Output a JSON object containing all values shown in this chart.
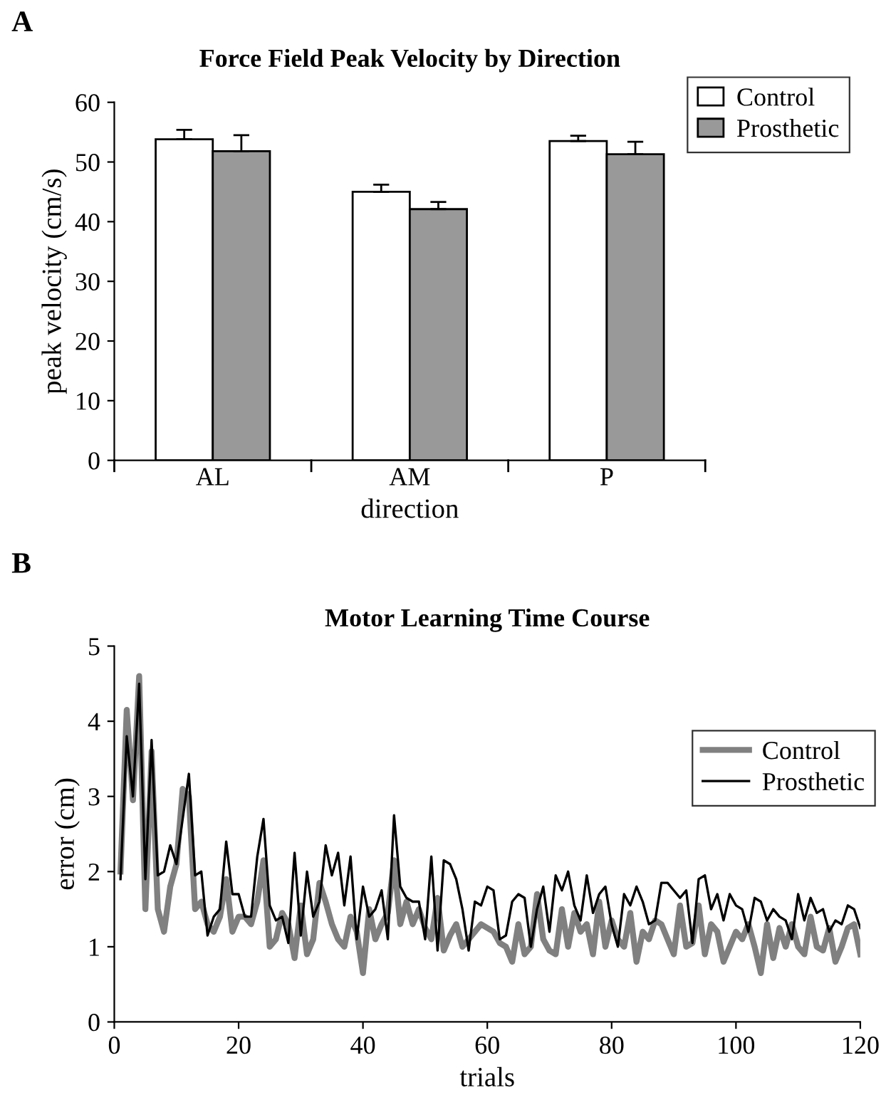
{
  "chart_data": [
    {
      "type": "bar",
      "title": "Force Field Peak Velocity by Direction",
      "xlabel": "direction",
      "ylabel": "peak velocity (cm/s)",
      "categories": [
        "AL",
        "AM",
        "P"
      ],
      "ylim": [
        0,
        60
      ],
      "yticks": [
        0,
        10,
        20,
        30,
        40,
        50,
        60
      ],
      "grid": false,
      "legend": "top right",
      "annotations": [
        "A"
      ],
      "series": [
        {
          "name": "Control",
          "color": "#ffffff",
          "values": [
            53.8,
            45.0,
            53.5
          ],
          "errors": [
            [
              53.8,
              55.4
            ],
            [
              45.0,
              46.2
            ],
            [
              53.5,
              54.4
            ]
          ]
        },
        {
          "name": "Prosthetic",
          "color": "#999999",
          "values": [
            51.8,
            42.1,
            51.3
          ],
          "errors": [
            [
              51.8,
              54.5
            ],
            [
              42.1,
              43.3
            ],
            [
              51.3,
              53.4
            ]
          ]
        }
      ]
    },
    {
      "type": "line",
      "title": "Motor Learning Time Course",
      "xlabel": "trials",
      "ylabel": "error (cm)",
      "xlim": [
        0,
        120
      ],
      "xticks": [
        0,
        20,
        40,
        60,
        80,
        100,
        120
      ],
      "ylim": [
        0,
        5
      ],
      "yticks": [
        0,
        1,
        2,
        3,
        4,
        5
      ],
      "grid": false,
      "legend": "right",
      "annotations": [
        "B"
      ],
      "series": [
        {
          "name": "Control",
          "color": "#808080",
          "x": [
            1,
            2,
            3,
            4,
            5,
            6,
            7,
            8,
            9,
            10,
            11,
            12,
            13,
            14,
            15,
            16,
            17,
            18,
            19,
            20,
            21,
            22,
            23,
            24,
            25,
            26,
            27,
            28,
            29,
            30,
            31,
            32,
            33,
            34,
            35,
            36,
            37,
            38,
            39,
            40,
            41,
            42,
            43,
            44,
            45,
            46,
            47,
            48,
            49,
            50,
            51,
            52,
            53,
            54,
            55,
            56,
            57,
            58,
            59,
            60,
            61,
            62,
            63,
            64,
            65,
            66,
            67,
            68,
            69,
            70,
            71,
            72,
            73,
            74,
            75,
            76,
            77,
            78,
            79,
            80,
            81,
            82,
            83,
            84,
            85,
            86,
            87,
            88,
            89,
            90,
            91,
            92,
            93,
            94,
            95,
            96,
            97,
            98,
            99,
            100,
            101,
            102,
            103,
            104,
            105,
            106,
            107,
            108,
            109,
            110,
            111,
            112,
            113,
            114,
            115,
            116,
            117,
            118,
            119,
            120
          ],
          "values": [
            2.0,
            4.15,
            2.95,
            4.6,
            1.5,
            3.6,
            1.5,
            1.2,
            1.8,
            2.1,
            3.1,
            3.0,
            1.5,
            1.6,
            1.3,
            1.2,
            1.4,
            1.9,
            1.2,
            1.4,
            1.4,
            1.3,
            1.6,
            2.15,
            1.0,
            1.1,
            1.45,
            1.3,
            0.85,
            1.55,
            0.9,
            1.1,
            1.85,
            1.6,
            1.3,
            1.1,
            1.0,
            1.4,
            1.2,
            0.65,
            1.5,
            1.1,
            1.3,
            1.45,
            2.15,
            1.3,
            1.6,
            1.3,
            1.5,
            1.25,
            1.1,
            1.65,
            0.95,
            1.15,
            1.3,
            1.0,
            1.1,
            1.2,
            1.3,
            1.25,
            1.2,
            1.05,
            1.0,
            0.8,
            1.3,
            0.9,
            1.0,
            1.7,
            1.1,
            0.95,
            0.9,
            1.5,
            1.0,
            1.45,
            1.2,
            1.3,
            0.9,
            1.6,
            1.0,
            1.35,
            1.1,
            1.0,
            1.45,
            0.8,
            1.2,
            1.1,
            1.35,
            1.3,
            1.1,
            0.9,
            1.55,
            1.0,
            1.05,
            1.55,
            0.9,
            1.3,
            1.2,
            0.8,
            1.0,
            1.2,
            1.1,
            1.3,
            1.0,
            0.65,
            1.3,
            0.85,
            1.25,
            1.0,
            1.3,
            1.0,
            0.9,
            1.4,
            1.0,
            0.95,
            1.25,
            0.8,
            1.0,
            1.25,
            1.3,
            0.9
          ]
        },
        {
          "name": "Prosthetic",
          "color": "#000000",
          "x": [
            1,
            2,
            3,
            4,
            5,
            6,
            7,
            8,
            9,
            10,
            11,
            12,
            13,
            14,
            15,
            16,
            17,
            18,
            19,
            20,
            21,
            22,
            23,
            24,
            25,
            26,
            27,
            28,
            29,
            30,
            31,
            32,
            33,
            34,
            35,
            36,
            37,
            38,
            39,
            40,
            41,
            42,
            43,
            44,
            45,
            46,
            47,
            48,
            49,
            50,
            51,
            52,
            53,
            54,
            55,
            56,
            57,
            58,
            59,
            60,
            61,
            62,
            63,
            64,
            65,
            66,
            67,
            68,
            69,
            70,
            71,
            72,
            73,
            74,
            75,
            76,
            77,
            78,
            79,
            80,
            81,
            82,
            83,
            84,
            85,
            86,
            87,
            88,
            89,
            90,
            91,
            92,
            93,
            94,
            95,
            96,
            97,
            98,
            99,
            100,
            101,
            102,
            103,
            104,
            105,
            106,
            107,
            108,
            109,
            110,
            111,
            112,
            113,
            114,
            115,
            116,
            117,
            118,
            119,
            120
          ],
          "values": [
            1.9,
            3.8,
            3.0,
            4.5,
            1.9,
            3.75,
            1.95,
            2.0,
            2.35,
            2.1,
            2.7,
            3.3,
            1.95,
            2.0,
            1.15,
            1.4,
            1.5,
            2.4,
            1.7,
            1.7,
            1.4,
            1.4,
            2.2,
            2.7,
            1.55,
            1.35,
            1.4,
            1.05,
            2.25,
            1.15,
            2.0,
            1.4,
            1.6,
            2.35,
            1.95,
            2.25,
            1.55,
            2.2,
            1.1,
            1.8,
            1.4,
            1.5,
            1.75,
            1.1,
            2.75,
            1.8,
            1.65,
            1.6,
            1.6,
            1.1,
            2.2,
            0.95,
            2.15,
            2.1,
            1.9,
            1.5,
            0.95,
            1.6,
            1.55,
            1.8,
            1.75,
            1.1,
            1.15,
            1.6,
            1.7,
            1.65,
            1.0,
            1.5,
            1.8,
            1.2,
            1.95,
            1.75,
            2.0,
            1.55,
            1.35,
            1.95,
            1.45,
            1.7,
            1.8,
            1.3,
            1.0,
            1.7,
            1.55,
            1.8,
            1.6,
            1.3,
            1.35,
            1.85,
            1.85,
            1.75,
            1.65,
            1.75,
            1.05,
            1.9,
            1.95,
            1.5,
            1.7,
            1.35,
            1.7,
            1.55,
            1.5,
            1.2,
            1.65,
            1.6,
            1.35,
            1.5,
            1.4,
            1.35,
            1.1,
            1.7,
            1.35,
            1.65,
            1.45,
            1.5,
            1.2,
            1.35,
            1.3,
            1.55,
            1.5,
            1.25
          ]
        }
      ]
    }
  ]
}
